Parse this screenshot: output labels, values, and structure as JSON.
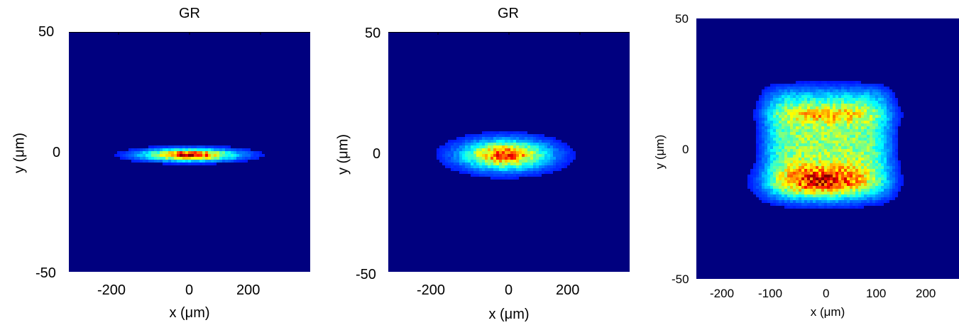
{
  "chart_data": [
    {
      "type": "heatmap",
      "title": "GR",
      "xlabel": "x (μm)",
      "ylabel": "y (μm)",
      "xlim": [
        -340,
        340
      ],
      "ylim": [
        -50,
        50
      ],
      "xticks": [
        -200,
        0,
        200
      ],
      "yticks": [
        50,
        0,
        -50
      ],
      "colormap": "jet",
      "background_color": "#00007f",
      "blob": {
        "center_x": 0,
        "center_y": -1,
        "half_width_x": 140,
        "half_width_y": 3
      },
      "blobs": [
        {
          "x": 0,
          "y": -1,
          "sx": 115,
          "sy": 2.2,
          "peak": 0.82
        }
      ]
    },
    {
      "type": "heatmap",
      "title": "GR",
      "xlabel": "x (μm)",
      "ylabel": "y (μm)",
      "xlim": [
        -340,
        340
      ],
      "ylim": [
        -50,
        50
      ],
      "xticks": [
        -200,
        0,
        200
      ],
      "yticks": [
        50,
        0,
        -50
      ],
      "colormap": "jet",
      "background_color": "#00007f",
      "blob": {
        "center_x": -10,
        "center_y": -1,
        "half_width_x": 150,
        "half_width_y": 8
      },
      "blobs": [
        {
          "x": -10,
          "y": -1,
          "sx": 110,
          "sy": 5.5,
          "peak": 0.72
        }
      ]
    },
    {
      "type": "heatmap",
      "title": "",
      "xlabel": "x (μm)",
      "ylabel": "y (μm)",
      "xlim": [
        -260,
        260
      ],
      "ylim": [
        -50,
        50
      ],
      "xticks": [
        -200,
        -100,
        0,
        100,
        200
      ],
      "yticks": [
        50,
        0,
        -50
      ],
      "colormap": "jet",
      "background_color": "#00007f",
      "blob": {
        "center_x": 0,
        "center_y": 0,
        "half_width_x": 140,
        "half_width_y": 22
      },
      "blobs": [
        {
          "x": 0,
          "y": 2,
          "sx": 120,
          "sy": 20,
          "peak": 0.42,
          "box": true
        },
        {
          "x": 0,
          "y": 13,
          "sx": 95,
          "sy": 3,
          "peak": 0.2
        },
        {
          "x": -10,
          "y": -13,
          "sx": 90,
          "sy": 6,
          "peak": 0.45
        }
      ]
    }
  ]
}
